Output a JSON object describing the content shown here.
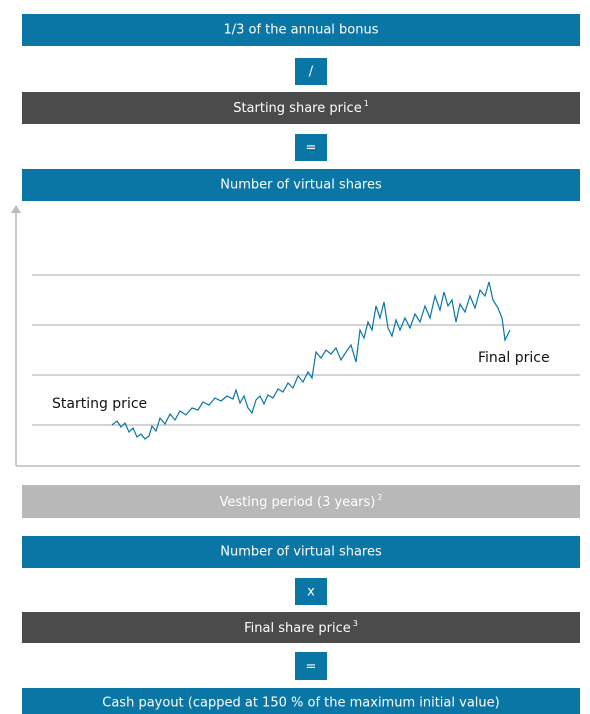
{
  "steps": [
    {
      "text": "1/3 of the annual bonus"
    },
    {
      "text": "/"
    },
    {
      "text": "Starting share price",
      "footnote": "1"
    },
    {
      "text": "="
    },
    {
      "text": "Number of virtual shares"
    },
    {
      "text": "Vesting period (3 years)",
      "footnote": "2"
    },
    {
      "text": "Number of virtual shares"
    },
    {
      "text": "x"
    },
    {
      "text": "Final share price",
      "footnote": "3"
    },
    {
      "text": "="
    },
    {
      "text": "Cash payout (capped at 150 % of the maximum initial value)"
    }
  ],
  "chart": {
    "start_label": "Starting price",
    "end_label": "Final price"
  }
}
